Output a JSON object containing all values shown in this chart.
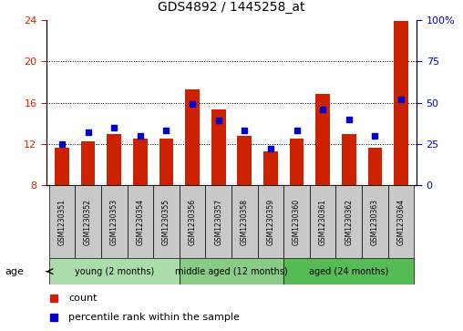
{
  "title": "GDS4892 / 1445258_at",
  "samples": [
    "GSM1230351",
    "GSM1230352",
    "GSM1230353",
    "GSM1230354",
    "GSM1230355",
    "GSM1230356",
    "GSM1230357",
    "GSM1230358",
    "GSM1230359",
    "GSM1230360",
    "GSM1230361",
    "GSM1230362",
    "GSM1230363",
    "GSM1230364"
  ],
  "red_values": [
    11.6,
    12.3,
    13.0,
    12.5,
    12.5,
    17.3,
    15.3,
    12.8,
    11.3,
    12.5,
    16.8,
    13.0,
    11.6,
    23.9
  ],
  "blue_percentile": [
    25,
    32,
    35,
    30,
    33,
    49,
    39,
    33,
    22,
    33,
    46,
    40,
    30,
    52
  ],
  "ylim_left": [
    8,
    24
  ],
  "ylim_right": [
    0,
    100
  ],
  "yticks_left": [
    8,
    12,
    16,
    20,
    24
  ],
  "yticks_right": [
    0,
    25,
    50,
    75,
    100
  ],
  "grid_values": [
    12,
    16,
    20
  ],
  "groups": [
    {
      "label": "young (2 months)",
      "start": 0,
      "end": 5
    },
    {
      "label": "middle aged (12 months)",
      "start": 5,
      "end": 9
    },
    {
      "label": "aged (24 months)",
      "start": 9,
      "end": 14
    }
  ],
  "group_colors": [
    "#AADDAA",
    "#88CC88",
    "#55BB55"
  ],
  "age_label": "age",
  "bar_color": "#CC2200",
  "blue_color": "#0000CC",
  "bar_bottom": 8,
  "tick_color_left": "#CC2200",
  "tick_color_right": "#0000CC",
  "legend_count": "count",
  "legend_percentile": "percentile rank within the sample",
  "sample_bg": "#C8C8C8"
}
